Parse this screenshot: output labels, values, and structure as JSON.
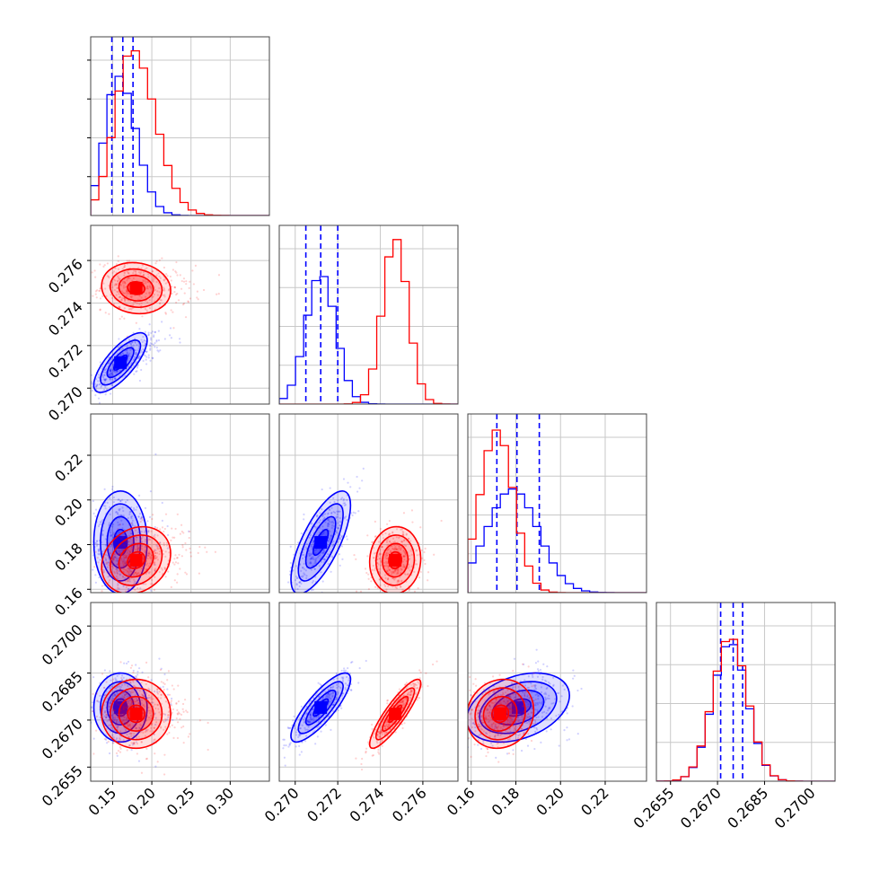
{
  "chart_data": {
    "type": "corner",
    "parameters": [
      {
        "ticks": [
          0.15,
          0.2,
          0.25,
          0.3
        ],
        "tick_labels": [
          "0.15",
          "0.20",
          "0.25",
          "0.30"
        ],
        "lim": [
          0.122,
          0.35
        ]
      },
      {
        "ticks": [
          0.27,
          0.272,
          0.274,
          0.276
        ],
        "tick_labels": [
          "0.270",
          "0.272",
          "0.274",
          "0.276"
        ],
        "lim": [
          0.26925,
          0.27765
        ]
      },
      {
        "ticks": [
          0.16,
          0.18,
          0.2,
          0.22
        ],
        "tick_labels": [
          "0.16",
          "0.18",
          "0.20",
          "0.22"
        ],
        "lim": [
          0.1585,
          0.2385
        ]
      },
      {
        "ticks": [
          0.2655,
          0.267,
          0.2685,
          0.27
        ],
        "tick_labels": [
          "0.2655",
          "0.2670",
          "0.2685",
          "0.2700"
        ],
        "lim": [
          0.26505,
          0.27075
        ]
      }
    ],
    "series": [
      {
        "color": "#0000ff",
        "means": [
          0.16,
          0.2712,
          0.181,
          0.2674
        ],
        "stds": [
          0.017,
          0.0007,
          0.0115,
          0.00055
        ],
        "quantiles": [
          [
            0.149,
            0.163,
            0.176
          ],
          [
            0.2705,
            0.2712,
            0.272
          ],
          [
            0.1715,
            0.1805,
            0.1905
          ],
          [
            0.2671,
            0.2675,
            0.2678
          ]
        ],
        "hist_peak": [
          0.157,
          0.2712,
          0.1785,
          0.2674
        ],
        "hist_peak_height": [
          0.78,
          0.73,
          0.58,
          0.78
        ]
      },
      {
        "color": "#ff0000",
        "means": [
          0.18,
          0.2747,
          0.173,
          0.2672
        ],
        "stds": [
          0.022,
          0.0006,
          0.0075,
          0.00055
        ],
        "quantiles": [],
        "hist_peak": [
          0.175,
          0.2747,
          0.1715,
          0.2674
        ],
        "hist_peak_height": [
          0.93,
          0.93,
          0.91,
          0.81
        ]
      }
    ],
    "grid": true,
    "legend": "none"
  }
}
